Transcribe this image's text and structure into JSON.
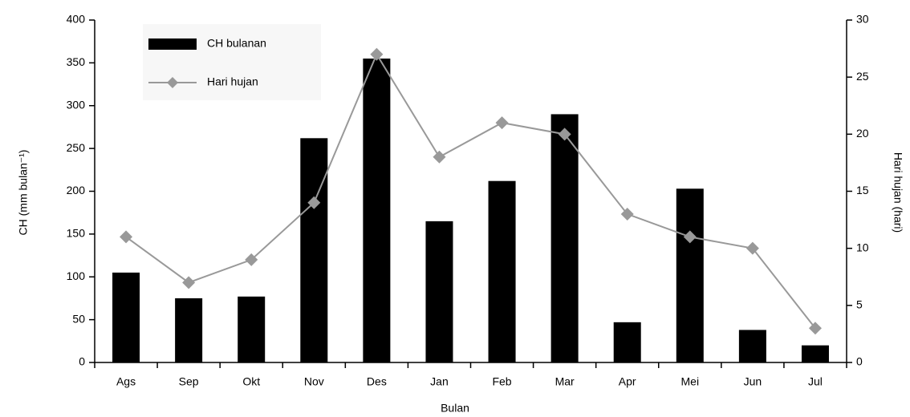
{
  "chart_data": {
    "type": "bar_line",
    "categories": [
      "Ags",
      "Sep",
      "Okt",
      "Nov",
      "Des",
      "Jan",
      "Feb",
      "Mar",
      "Apr",
      "Mei",
      "Jun",
      "Jul"
    ],
    "series": [
      {
        "name": "CH bulanan",
        "color": "#000000",
        "type": "bar",
        "values": [
          105,
          75,
          77,
          262,
          355,
          165,
          212,
          290,
          47,
          203,
          38,
          20
        ]
      },
      {
        "name": "Hari hujan",
        "color": "#999999",
        "type": "line",
        "axis": "y2",
        "values": [
          11,
          7,
          9,
          14,
          27,
          18,
          21,
          20,
          13,
          11,
          10,
          3
        ]
      }
    ],
    "xlabel": "Bulan",
    "ylabel": "CH (mm bulan⁻¹)",
    "y2label": "Hari hujan (hari)",
    "ylim": [
      0,
      400
    ],
    "yticks": [
      0,
      50,
      100,
      150,
      200,
      250,
      300,
      350,
      400
    ],
    "y2lim": [
      0,
      30
    ],
    "y2ticks": [
      0,
      5,
      10,
      15,
      20,
      25,
      30
    ],
    "legend": "upper left",
    "grid": false
  }
}
